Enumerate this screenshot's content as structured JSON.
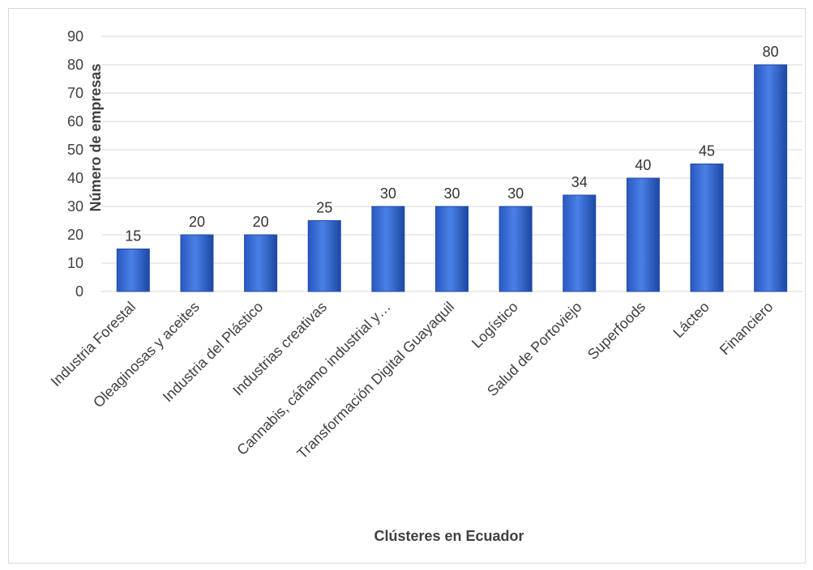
{
  "chart_data": {
    "type": "bar",
    "title": "",
    "xlabel": "Clústeres en Ecuador",
    "ylabel": "Número de empresas",
    "categories": [
      "Industria Forestal",
      "Oleaginosas y aceites",
      "Industria del Plástico",
      "Industrias creativas",
      "Cannabis, cáñamo industrial y…",
      "Transformación Digital Guayaquil",
      "Logístico",
      "Salud de Portoviejo",
      "Superfoods",
      "Lácteo",
      "Financiero"
    ],
    "values": [
      15,
      20,
      20,
      25,
      30,
      30,
      30,
      34,
      40,
      45,
      80
    ],
    "ylim": [
      0,
      90
    ],
    "yticks": [
      0,
      10,
      20,
      30,
      40,
      50,
      60,
      70,
      80,
      90
    ],
    "grid": true,
    "legend": "none",
    "colors": {
      "bar": "#3a6fd8",
      "bar_dark": "#1f4aa8",
      "grid": "#d9d9d9"
    }
  }
}
